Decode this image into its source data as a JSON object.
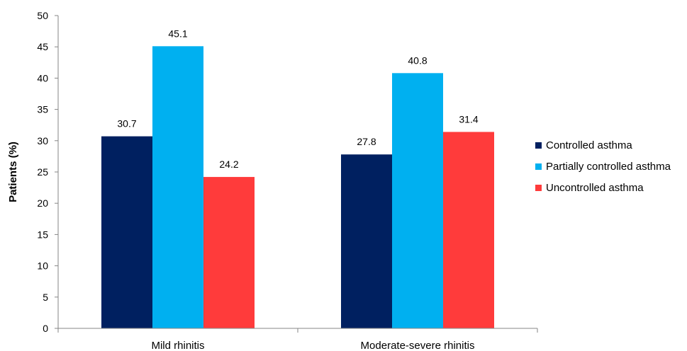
{
  "chart_data": {
    "type": "bar",
    "categories": [
      "Mild rhinitis",
      "Moderate-severe rhinitis"
    ],
    "series": [
      {
        "name": "Controlled asthma",
        "values": [
          30.7,
          27.8
        ],
        "color": "#002060"
      },
      {
        "name": "Partially controlled asthma",
        "values": [
          45.1,
          40.8
        ],
        "color": "#00B0F0"
      },
      {
        "name": "Uncontrolled asthma",
        "values": [
          24.2,
          31.4
        ],
        "color": "#FF3B3B"
      }
    ],
    "data_labels": [
      [
        "30.7",
        "27.8"
      ],
      [
        "45.1",
        "40.8"
      ],
      [
        "24.2",
        "31.4"
      ]
    ],
    "ylabel": "Patients (%)",
    "ylim": [
      0,
      50
    ],
    "yticks": [
      "0",
      "5",
      "10",
      "15",
      "20",
      "25",
      "30",
      "35",
      "40",
      "45",
      "50"
    ],
    "grid": false,
    "legend_position": "right"
  }
}
